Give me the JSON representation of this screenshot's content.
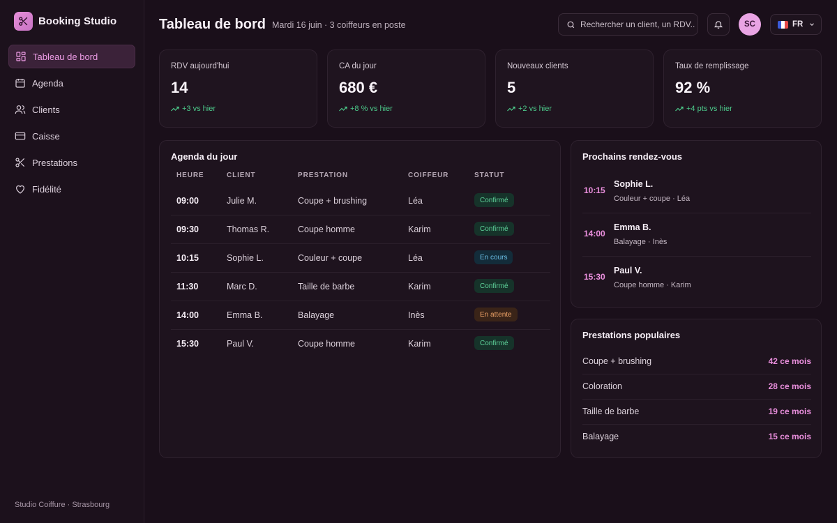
{
  "app": {
    "name": "Booking Studio",
    "footer": "Studio Coiffure · Strasbourg"
  },
  "nav": [
    {
      "label": "Tableau de bord",
      "icon": "dashboard-icon",
      "active": true
    },
    {
      "label": "Agenda",
      "icon": "calendar-icon",
      "active": false
    },
    {
      "label": "Clients",
      "icon": "users-icon",
      "active": false
    },
    {
      "label": "Caisse",
      "icon": "credit-card-icon",
      "active": false
    },
    {
      "label": "Prestations",
      "icon": "scissors-icon",
      "active": false
    },
    {
      "label": "Fidélité",
      "icon": "heart-icon",
      "active": false
    }
  ],
  "header": {
    "title": "Tableau de bord",
    "subtitle": "Mardi 16 juin · 3 coiffeurs en poste",
    "search_placeholder": "Rechercher un client, un RDV...",
    "avatar_initials": "SC",
    "language": "FR"
  },
  "stats": [
    {
      "label": "RDV aujourd'hui",
      "value": "14",
      "delta": "+3 vs hier"
    },
    {
      "label": "CA du jour",
      "value": "680 €",
      "delta": "+8 % vs hier"
    },
    {
      "label": "Nouveaux clients",
      "value": "5",
      "delta": "+2 vs hier"
    },
    {
      "label": "Taux de remplissage",
      "value": "92 %",
      "delta": "+4 pts vs hier"
    }
  ],
  "agenda": {
    "title": "Agenda du jour",
    "columns": [
      "HEURE",
      "CLIENT",
      "PRESTATION",
      "COIFFEUR",
      "STATUT"
    ],
    "rows": [
      {
        "time": "09:00",
        "client": "Julie M.",
        "service": "Coupe + brushing",
        "stylist": "Léa",
        "status": "Confirmé",
        "status_type": "confirmed"
      },
      {
        "time": "09:30",
        "client": "Thomas R.",
        "service": "Coupe homme",
        "stylist": "Karim",
        "status": "Confirmé",
        "status_type": "confirmed"
      },
      {
        "time": "10:15",
        "client": "Sophie L.",
        "service": "Couleur + coupe",
        "stylist": "Léa",
        "status": "En cours",
        "status_type": "in-progress"
      },
      {
        "time": "11:30",
        "client": "Marc D.",
        "service": "Taille de barbe",
        "stylist": "Karim",
        "status": "Confirmé",
        "status_type": "confirmed"
      },
      {
        "time": "14:00",
        "client": "Emma B.",
        "service": "Balayage",
        "stylist": "Inès",
        "status": "En attente",
        "status_type": "pending"
      },
      {
        "time": "15:30",
        "client": "Paul V.",
        "service": "Coupe homme",
        "stylist": "Karim",
        "status": "Confirmé",
        "status_type": "confirmed"
      }
    ]
  },
  "upcoming": {
    "title": "Prochains rendez-vous",
    "items": [
      {
        "time": "10:15",
        "name": "Sophie L.",
        "detail": "Couleur + coupe · Léa"
      },
      {
        "time": "14:00",
        "name": "Emma B.",
        "detail": "Balayage · Inès"
      },
      {
        "time": "15:30",
        "name": "Paul V.",
        "detail": "Coupe homme · Karim"
      }
    ]
  },
  "popular": {
    "title": "Prestations populaires",
    "items": [
      {
        "name": "Coupe + brushing",
        "count": "42 ce mois"
      },
      {
        "name": "Coloration",
        "count": "28 ce mois"
      },
      {
        "name": "Taille de barbe",
        "count": "19 ce mois"
      },
      {
        "name": "Balayage",
        "count": "15 ce mois"
      }
    ]
  },
  "colors": {
    "accent": "#ea8fdd",
    "positive": "#4cc98a",
    "confirmed_bg": "#16332a",
    "confirmed_fg": "#5fd49b",
    "in_progress_bg": "#132c3a",
    "in_progress_fg": "#6cc0e8",
    "pending_bg": "#3a2418",
    "pending_fg": "#f0a468"
  }
}
